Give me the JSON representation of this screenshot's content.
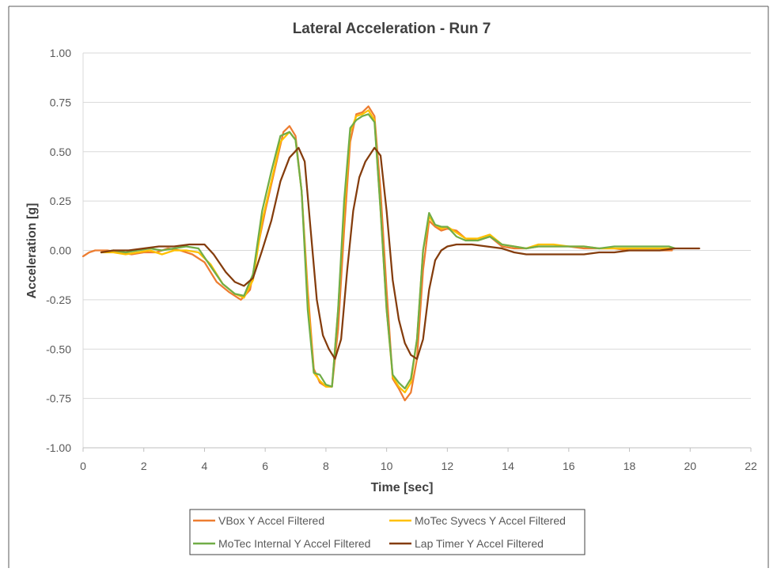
{
  "chart_data": {
    "type": "line",
    "title": "Lateral Acceleration - Run 7",
    "xlabel": "Time [sec]",
    "ylabel": "Acceleration [g]",
    "xlim": [
      0,
      22
    ],
    "ylim": [
      -1.0,
      1.0
    ],
    "x_ticks": [
      0,
      2,
      4,
      6,
      8,
      10,
      12,
      14,
      16,
      18,
      20,
      22
    ],
    "x_tick_labels": [
      "0",
      "2",
      "4",
      "6",
      "8",
      "10",
      "12",
      "14",
      "16",
      "18",
      "20",
      "22"
    ],
    "y_ticks": [
      1.0,
      0.75,
      0.5,
      0.25,
      0.0,
      -0.25,
      -0.5,
      -0.75,
      -1.0
    ],
    "y_tick_labels": [
      "1.00",
      "0.75",
      "0.50",
      "0.25",
      "0.00",
      "-0.25",
      "-0.50",
      "-0.75",
      "-1.00"
    ],
    "grid": "horizontal",
    "legend_position": "bottom",
    "series": [
      {
        "name": "VBox Y Accel Filtered",
        "color": "#ED7D31",
        "points": [
          [
            0,
            -0.03
          ],
          [
            0.2,
            -0.01
          ],
          [
            0.4,
            0.0
          ],
          [
            0.8,
            0.0
          ],
          [
            1.2,
            -0.01
          ],
          [
            1.6,
            -0.02
          ],
          [
            2.0,
            -0.01
          ],
          [
            2.4,
            -0.01
          ],
          [
            2.8,
            0.01
          ],
          [
            3.2,
            0.0
          ],
          [
            3.6,
            -0.02
          ],
          [
            4.0,
            -0.06
          ],
          [
            4.4,
            -0.16
          ],
          [
            4.8,
            -0.21
          ],
          [
            5.2,
            -0.25
          ],
          [
            5.5,
            -0.2
          ],
          [
            5.8,
            0.05
          ],
          [
            6.0,
            0.2
          ],
          [
            6.3,
            0.4
          ],
          [
            6.6,
            0.6
          ],
          [
            6.8,
            0.63
          ],
          [
            7.0,
            0.58
          ],
          [
            7.2,
            0.3
          ],
          [
            7.4,
            -0.2
          ],
          [
            7.6,
            -0.6
          ],
          [
            7.8,
            -0.67
          ],
          [
            8.0,
            -0.69
          ],
          [
            8.2,
            -0.69
          ],
          [
            8.4,
            -0.4
          ],
          [
            8.6,
            0.1
          ],
          [
            8.8,
            0.55
          ],
          [
            9.0,
            0.69
          ],
          [
            9.2,
            0.7
          ],
          [
            9.4,
            0.73
          ],
          [
            9.6,
            0.68
          ],
          [
            9.8,
            0.3
          ],
          [
            10.0,
            -0.2
          ],
          [
            10.2,
            -0.65
          ],
          [
            10.4,
            -0.7
          ],
          [
            10.6,
            -0.76
          ],
          [
            10.8,
            -0.72
          ],
          [
            11.0,
            -0.55
          ],
          [
            11.2,
            -0.1
          ],
          [
            11.4,
            0.15
          ],
          [
            11.6,
            0.12
          ],
          [
            11.8,
            0.1
          ],
          [
            12.0,
            0.11
          ],
          [
            12.3,
            0.1
          ],
          [
            12.6,
            0.06
          ],
          [
            13.0,
            0.05
          ],
          [
            13.4,
            0.07
          ],
          [
            13.8,
            0.02
          ],
          [
            14.2,
            0.01
          ],
          [
            14.6,
            0.01
          ],
          [
            15.0,
            0.02
          ],
          [
            15.5,
            0.02
          ],
          [
            16.0,
            0.02
          ],
          [
            16.5,
            0.01
          ],
          [
            17.0,
            0.01
          ],
          [
            17.5,
            0.01
          ],
          [
            18.0,
            0.0
          ],
          [
            18.5,
            0.0
          ],
          [
            19.0,
            0.0
          ],
          [
            19.4,
            0.0
          ]
        ]
      },
      {
        "name": "MoTec Syvecs Y Accel Filtered",
        "color": "#FFC000",
        "points": [
          [
            0.6,
            -0.01
          ],
          [
            1.0,
            -0.01
          ],
          [
            1.4,
            -0.02
          ],
          [
            1.8,
            -0.01
          ],
          [
            2.2,
            0.0
          ],
          [
            2.6,
            -0.02
          ],
          [
            3.0,
            0.0
          ],
          [
            3.4,
            0.0
          ],
          [
            3.8,
            -0.01
          ],
          [
            4.2,
            -0.07
          ],
          [
            4.6,
            -0.17
          ],
          [
            5.0,
            -0.22
          ],
          [
            5.3,
            -0.24
          ],
          [
            5.6,
            -0.15
          ],
          [
            5.9,
            0.15
          ],
          [
            6.2,
            0.35
          ],
          [
            6.5,
            0.55
          ],
          [
            6.8,
            0.6
          ],
          [
            7.0,
            0.56
          ],
          [
            7.2,
            0.3
          ],
          [
            7.4,
            -0.25
          ],
          [
            7.6,
            -0.62
          ],
          [
            7.8,
            -0.66
          ],
          [
            8.0,
            -0.69
          ],
          [
            8.2,
            -0.69
          ],
          [
            8.4,
            -0.3
          ],
          [
            8.6,
            0.2
          ],
          [
            8.8,
            0.6
          ],
          [
            9.0,
            0.68
          ],
          [
            9.2,
            0.69
          ],
          [
            9.4,
            0.71
          ],
          [
            9.6,
            0.66
          ],
          [
            9.8,
            0.2
          ],
          [
            10.0,
            -0.3
          ],
          [
            10.2,
            -0.64
          ],
          [
            10.4,
            -0.69
          ],
          [
            10.6,
            -0.72
          ],
          [
            10.8,
            -0.67
          ],
          [
            11.0,
            -0.45
          ],
          [
            11.2,
            0.0
          ],
          [
            11.4,
            0.17
          ],
          [
            11.6,
            0.13
          ],
          [
            11.8,
            0.11
          ],
          [
            12.0,
            0.12
          ],
          [
            12.3,
            0.09
          ],
          [
            12.6,
            0.06
          ],
          [
            13.0,
            0.06
          ],
          [
            13.4,
            0.08
          ],
          [
            13.8,
            0.03
          ],
          [
            14.2,
            0.02
          ],
          [
            14.6,
            0.01
          ],
          [
            15.0,
            0.03
          ],
          [
            15.5,
            0.03
          ],
          [
            16.0,
            0.02
          ],
          [
            16.5,
            0.02
          ],
          [
            17.0,
            0.01
          ],
          [
            17.5,
            0.01
          ],
          [
            18.0,
            0.01
          ],
          [
            18.5,
            0.01
          ],
          [
            19.0,
            0.01
          ],
          [
            19.4,
            0.01
          ]
        ]
      },
      {
        "name": "MoTec Internal Y Accel Filtered",
        "color": "#70AD47",
        "points": [
          [
            0.6,
            -0.01
          ],
          [
            1.0,
            0.0
          ],
          [
            1.4,
            -0.01
          ],
          [
            1.8,
            0.0
          ],
          [
            2.2,
            0.01
          ],
          [
            2.6,
            0.0
          ],
          [
            3.0,
            0.01
          ],
          [
            3.4,
            0.02
          ],
          [
            3.8,
            0.01
          ],
          [
            4.2,
            -0.08
          ],
          [
            4.6,
            -0.17
          ],
          [
            5.0,
            -0.22
          ],
          [
            5.3,
            -0.23
          ],
          [
            5.6,
            -0.12
          ],
          [
            5.9,
            0.2
          ],
          [
            6.2,
            0.4
          ],
          [
            6.5,
            0.58
          ],
          [
            6.8,
            0.6
          ],
          [
            7.0,
            0.56
          ],
          [
            7.2,
            0.3
          ],
          [
            7.4,
            -0.3
          ],
          [
            7.6,
            -0.62
          ],
          [
            7.8,
            -0.63
          ],
          [
            8.0,
            -0.68
          ],
          [
            8.2,
            -0.69
          ],
          [
            8.4,
            -0.3
          ],
          [
            8.6,
            0.25
          ],
          [
            8.8,
            0.62
          ],
          [
            9.0,
            0.66
          ],
          [
            9.2,
            0.68
          ],
          [
            9.4,
            0.69
          ],
          [
            9.6,
            0.65
          ],
          [
            9.8,
            0.2
          ],
          [
            10.0,
            -0.3
          ],
          [
            10.2,
            -0.63
          ],
          [
            10.4,
            -0.67
          ],
          [
            10.6,
            -0.7
          ],
          [
            10.8,
            -0.65
          ],
          [
            11.0,
            -0.45
          ],
          [
            11.2,
            0.0
          ],
          [
            11.4,
            0.19
          ],
          [
            11.6,
            0.13
          ],
          [
            11.8,
            0.12
          ],
          [
            12.0,
            0.12
          ],
          [
            12.3,
            0.07
          ],
          [
            12.6,
            0.05
          ],
          [
            13.0,
            0.05
          ],
          [
            13.4,
            0.07
          ],
          [
            13.8,
            0.03
          ],
          [
            14.2,
            0.02
          ],
          [
            14.6,
            0.01
          ],
          [
            15.0,
            0.02
          ],
          [
            15.5,
            0.02
          ],
          [
            16.0,
            0.02
          ],
          [
            16.5,
            0.02
          ],
          [
            17.0,
            0.01
          ],
          [
            17.5,
            0.02
          ],
          [
            18.0,
            0.02
          ],
          [
            18.5,
            0.02
          ],
          [
            19.0,
            0.02
          ],
          [
            19.3,
            0.02
          ],
          [
            19.5,
            0.01
          ]
        ]
      },
      {
        "name": "Lap Timer Y Accel Filtered",
        "color": "#843C0C",
        "points": [
          [
            0.6,
            -0.01
          ],
          [
            1.0,
            0.0
          ],
          [
            1.5,
            0.0
          ],
          [
            2.0,
            0.01
          ],
          [
            2.5,
            0.02
          ],
          [
            3.0,
            0.02
          ],
          [
            3.5,
            0.03
          ],
          [
            4.0,
            0.03
          ],
          [
            4.3,
            -0.02
          ],
          [
            4.7,
            -0.11
          ],
          [
            5.0,
            -0.16
          ],
          [
            5.3,
            -0.18
          ],
          [
            5.6,
            -0.14
          ],
          [
            5.9,
            0.0
          ],
          [
            6.2,
            0.15
          ],
          [
            6.5,
            0.35
          ],
          [
            6.8,
            0.47
          ],
          [
            7.1,
            0.52
          ],
          [
            7.3,
            0.45
          ],
          [
            7.5,
            0.1
          ],
          [
            7.7,
            -0.25
          ],
          [
            7.9,
            -0.43
          ],
          [
            8.1,
            -0.5
          ],
          [
            8.3,
            -0.55
          ],
          [
            8.5,
            -0.45
          ],
          [
            8.7,
            -0.1
          ],
          [
            8.9,
            0.2
          ],
          [
            9.1,
            0.37
          ],
          [
            9.3,
            0.45
          ],
          [
            9.6,
            0.52
          ],
          [
            9.8,
            0.48
          ],
          [
            10.0,
            0.2
          ],
          [
            10.2,
            -0.15
          ],
          [
            10.4,
            -0.35
          ],
          [
            10.6,
            -0.47
          ],
          [
            10.8,
            -0.53
          ],
          [
            11.0,
            -0.55
          ],
          [
            11.2,
            -0.45
          ],
          [
            11.4,
            -0.2
          ],
          [
            11.6,
            -0.05
          ],
          [
            11.8,
            0.0
          ],
          [
            12.0,
            0.02
          ],
          [
            12.3,
            0.03
          ],
          [
            12.8,
            0.03
          ],
          [
            13.3,
            0.02
          ],
          [
            13.8,
            0.01
          ],
          [
            14.2,
            -0.01
          ],
          [
            14.6,
            -0.02
          ],
          [
            15.0,
            -0.02
          ],
          [
            15.5,
            -0.02
          ],
          [
            16.0,
            -0.02
          ],
          [
            16.5,
            -0.02
          ],
          [
            17.0,
            -0.01
          ],
          [
            17.5,
            -0.01
          ],
          [
            18.0,
            0.0
          ],
          [
            18.5,
            0.0
          ],
          [
            19.0,
            0.0
          ],
          [
            19.5,
            0.01
          ],
          [
            20.0,
            0.01
          ],
          [
            20.3,
            0.01
          ]
        ]
      }
    ]
  }
}
